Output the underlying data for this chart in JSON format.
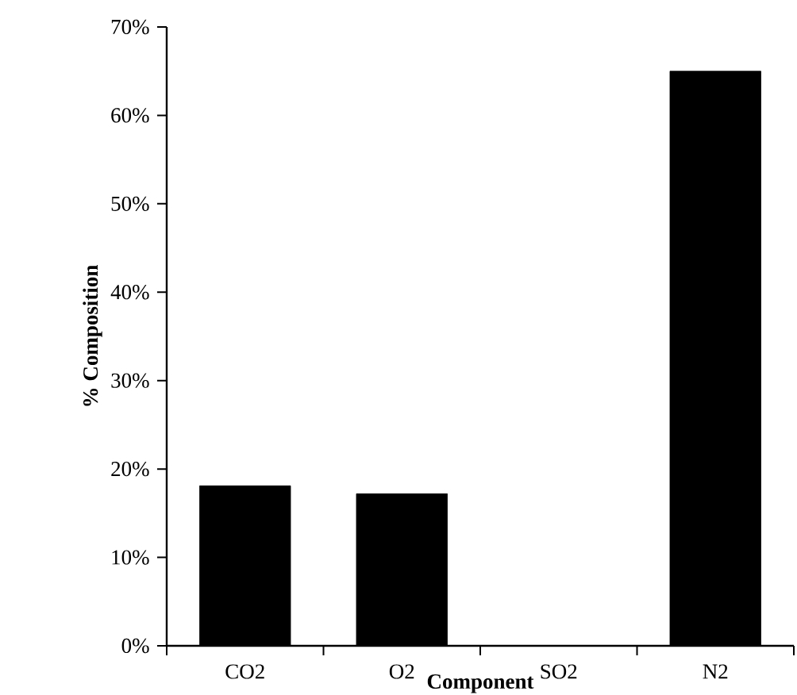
{
  "chart_data": {
    "type": "bar",
    "xlabel": "Component",
    "ylabel": "% Composition",
    "categories": [
      "CO2",
      "O2",
      "SO2",
      "N2"
    ],
    "values": [
      18.1,
      17.2,
      0,
      65
    ],
    "color": "#000000",
    "ylim": [
      0,
      70
    ],
    "yticks": [
      {
        "value": 0,
        "label": "0%"
      },
      {
        "value": 10,
        "label": "10%"
      },
      {
        "value": 20,
        "label": "20%"
      },
      {
        "value": 30,
        "label": "30%"
      },
      {
        "value": 40,
        "label": "40%"
      },
      {
        "value": 50,
        "label": "50%"
      },
      {
        "value": 60,
        "label": "60%"
      },
      {
        "value": 70,
        "label": "70%"
      }
    ],
    "grid": false
  }
}
